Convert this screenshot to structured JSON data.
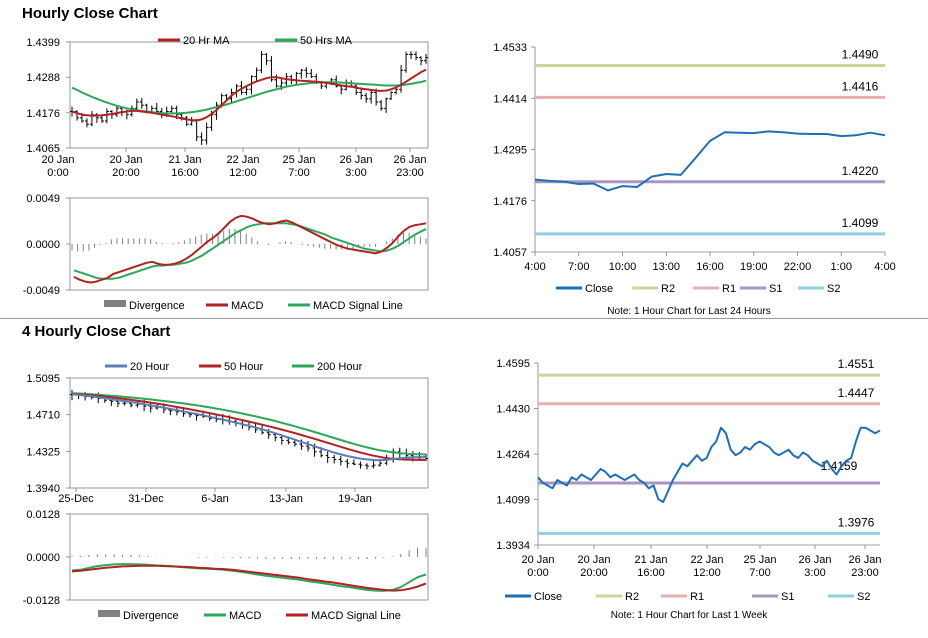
{
  "sections": {
    "hourly_title": "Hourly Close Chart",
    "four_hourly_title": "4 Hourly Close Chart"
  },
  "colors": {
    "ma_short": "#b22222",
    "ma_long": "#2ca85a",
    "ma_20h": "#5b7fb8",
    "close": "#1f6fb5",
    "r2": "#c8d89a",
    "r1": "#e6b0ae",
    "s1": "#a995c2",
    "s2": "#8fcfe0",
    "divergence": "#808080",
    "price_bars": "#000000"
  },
  "chart_data": [
    {
      "id": "hourly_price",
      "type": "ohlc",
      "legend": [
        "20 Hr MA",
        "50 Hrs MA"
      ],
      "y_ticks": [
        "1.4399",
        "1.4288",
        "1.4176",
        "1.4065"
      ],
      "ylim": [
        1.4065,
        1.4399
      ],
      "x_ticks": [
        "20 Jan\n0:00",
        "20 Jan\n20:00",
        "21 Jan\n16:00",
        "22 Jan\n12:00",
        "25 Jan\n7:00",
        "26 Jan\n3:00",
        "26 Jan\n23:00"
      ],
      "close": [
        1.418,
        1.416,
        1.415,
        1.414,
        1.417,
        1.416,
        1.415,
        1.418,
        1.417,
        1.419,
        1.418,
        1.417,
        1.419,
        1.421,
        1.42,
        1.418,
        1.419,
        1.418,
        1.417,
        1.418,
        1.419,
        1.417,
        1.416,
        1.414,
        1.415,
        1.41,
        1.409,
        1.413,
        1.417,
        1.42,
        1.423,
        1.422,
        1.424,
        1.426,
        1.424,
        1.425,
        1.429,
        1.431,
        1.436,
        1.434,
        1.428,
        1.426,
        1.427,
        1.429,
        1.428,
        1.43,
        1.431,
        1.43,
        1.429,
        1.427,
        1.426,
        1.427,
        1.428,
        1.426,
        1.425,
        1.427,
        1.426,
        1.424,
        1.423,
        1.422,
        1.424,
        1.421,
        1.419,
        1.422,
        1.424,
        1.425,
        1.431,
        1.436,
        1.436,
        1.435,
        1.434,
        1.435
      ],
      "ma20": [
        1.418,
        1.4175,
        1.417,
        1.4168,
        1.4167,
        1.4167,
        1.4168,
        1.417,
        1.4172,
        1.4175,
        1.4178,
        1.418,
        1.4182,
        1.4182,
        1.418,
        1.4178,
        1.4176,
        1.4173,
        1.417,
        1.4168,
        1.4165,
        1.4162,
        1.4158,
        1.4155,
        1.4153,
        1.4152,
        1.4155,
        1.4162,
        1.4172,
        1.4185,
        1.42,
        1.4215,
        1.423,
        1.4242,
        1.4252,
        1.426,
        1.4268,
        1.4275,
        1.428,
        1.4285,
        1.4288,
        1.4288,
        1.4285,
        1.4282,
        1.428,
        1.4278,
        1.4277,
        1.4276,
        1.4275,
        1.4274,
        1.4272,
        1.427,
        1.4268,
        1.4265,
        1.4262,
        1.426,
        1.4258,
        1.4255,
        1.4252,
        1.425,
        1.4248,
        1.4246,
        1.4245,
        1.4246,
        1.425,
        1.4256,
        1.4264,
        1.4274,
        1.4284,
        1.4294,
        1.4304,
        1.4312
      ],
      "ma50": [
        1.4255,
        1.4248,
        1.424,
        1.4233,
        1.4226,
        1.422,
        1.4214,
        1.4208,
        1.4203,
        1.4198,
        1.4194,
        1.419,
        1.4187,
        1.4184,
        1.4182,
        1.418,
        1.4178,
        1.4176,
        1.4175,
        1.4174,
        1.4174,
        1.4174,
        1.4175,
        1.4176,
        1.4178,
        1.418,
        1.4183,
        1.4186,
        1.419,
        1.4194,
        1.4198,
        1.4202,
        1.4207,
        1.4212,
        1.4217,
        1.4222,
        1.4227,
        1.4232,
        1.4237,
        1.4242,
        1.4246,
        1.425,
        1.4254,
        1.4258,
        1.4261,
        1.4264,
        1.4266,
        1.4268,
        1.427,
        1.4271,
        1.4272,
        1.4272,
        1.4272,
        1.4272,
        1.4271,
        1.427,
        1.4269,
        1.4268,
        1.4267,
        1.4266,
        1.4265,
        1.4264,
        1.4263,
        1.4262,
        1.4262,
        1.4262,
        1.4263,
        1.4265,
        1.4267,
        1.427,
        1.4273,
        1.4277
      ]
    },
    {
      "id": "hourly_macd",
      "type": "line+bar",
      "legend": [
        "Divergence",
        "MACD",
        "MACD Signal Line"
      ],
      "y_ticks": [
        "0.0049",
        "0.0000",
        "-0.0049"
      ],
      "ylim": [
        -0.0049,
        0.0049
      ],
      "macd": [
        -0.0035,
        -0.0038,
        -0.004,
        -0.0041,
        -0.004,
        -0.0038,
        -0.0036,
        -0.0032,
        -0.003,
        -0.0028,
        -0.0026,
        -0.0024,
        -0.0022,
        -0.002,
        -0.0019,
        -0.0021,
        -0.0022,
        -0.0022,
        -0.0021,
        -0.0019,
        -0.0016,
        -0.0012,
        -0.0007,
        -0.0002,
        0.0003,
        0.0007,
        0.0012,
        0.0018,
        0.0024,
        0.0028,
        0.003,
        0.0029,
        0.0027,
        0.0024,
        0.0022,
        0.0021,
        0.0022,
        0.0024,
        0.0025,
        0.0023,
        0.002,
        0.0017,
        0.0014,
        0.0011,
        0.0008,
        0.0005,
        0.0002,
        -0.0001,
        -0.0003,
        -0.0005,
        -0.0006,
        -0.0007,
        -0.0008,
        -0.0009,
        -0.001,
        -0.0008,
        -0.0004,
        0.0001,
        0.0008,
        0.0014,
        0.0018,
        0.002,
        0.0021,
        0.0022
      ],
      "signal": [
        -0.0028,
        -0.003,
        -0.0032,
        -0.0034,
        -0.0036,
        -0.0037,
        -0.0037,
        -0.0037,
        -0.0036,
        -0.0034,
        -0.0032,
        -0.003,
        -0.0028,
        -0.0026,
        -0.0024,
        -0.0023,
        -0.0023,
        -0.0022,
        -0.0022,
        -0.0021,
        -0.002,
        -0.0018,
        -0.0015,
        -0.0012,
        -0.0008,
        -0.0004,
        0.0,
        0.0004,
        0.0008,
        0.0012,
        0.0015,
        0.0018,
        0.002,
        0.0021,
        0.0022,
        0.0022,
        0.0022,
        0.0022,
        0.0022,
        0.0021,
        0.002,
        0.0018,
        0.0016,
        0.0014,
        0.0012,
        0.001,
        0.0007,
        0.0005,
        0.0003,
        0.0001,
        -0.0001,
        -0.0003,
        -0.0005,
        -0.0006,
        -0.0007,
        -0.0008,
        -0.0007,
        -0.0005,
        -0.0002,
        0.0002,
        0.0006,
        0.001,
        0.0013,
        0.0016
      ],
      "divergence": [
        -0.0007,
        -0.0008,
        -0.0008,
        -0.0007,
        -0.0004,
        -0.0001,
        0.0001,
        0.0005,
        0.0006,
        0.0006,
        0.0006,
        0.0006,
        0.0006,
        0.0006,
        0.0005,
        0.0002,
        0.0001,
        0.0,
        0.0001,
        0.0002,
        0.0004,
        0.0006,
        0.0008,
        0.001,
        0.0011,
        0.0011,
        0.0012,
        0.0014,
        0.0016,
        0.0016,
        0.0015,
        0.0011,
        0.0007,
        0.0003,
        0.0,
        -0.0001,
        0.0,
        0.0002,
        0.0003,
        0.0002,
        0.0,
        -0.0001,
        -0.0002,
        -0.0003,
        -0.0004,
        -0.0005,
        -0.0005,
        -0.0006,
        -0.0006,
        -0.0006,
        -0.0005,
        -0.0004,
        -0.0003,
        -0.0003,
        -0.0003,
        0.0,
        0.0003,
        0.0006,
        0.001,
        0.0012,
        0.0012,
        0.001,
        0.0008,
        0.0006
      ]
    },
    {
      "id": "hourly_levels",
      "type": "line",
      "note": "Note: 1 Hour Chart for Last 24 Hours",
      "legend": [
        "Close",
        "R2",
        "R1",
        "S1",
        "S2"
      ],
      "y_ticks": [
        "1.4533",
        "1.4414",
        "1.4295",
        "1.4176",
        "1.4057"
      ],
      "ylim": [
        1.4057,
        1.4533
      ],
      "x_ticks": [
        "4:00",
        "7:00",
        "10:00",
        "13:00",
        "16:00",
        "19:00",
        "22:00",
        "1:00",
        "4:00"
      ],
      "levels": {
        "R2": 1.449,
        "R1": 1.4416,
        "S1": 1.422,
        "S2": 1.4099
      },
      "level_labels": {
        "R2": "1.4490",
        "R1": "1.4416",
        "S1": "1.4220",
        "S2": "1.4099"
      },
      "close": [
        1.4225,
        1.4222,
        1.422,
        1.4215,
        1.4216,
        1.42,
        1.421,
        1.4208,
        1.4232,
        1.4238,
        1.4236,
        1.4275,
        1.4315,
        1.4335,
        1.4334,
        1.4333,
        1.4337,
        1.4335,
        1.4332,
        1.4331,
        1.4331,
        1.4326,
        1.4328,
        1.4334,
        1.4328
      ]
    },
    {
      "id": "four_hourly_price",
      "type": "ohlc",
      "legend": [
        "20 Hour",
        "50 Hour",
        "200 Hour"
      ],
      "y_ticks": [
        "1.5095",
        "1.4710",
        "1.4325",
        "1.3940"
      ],
      "ylim": [
        1.394,
        1.5095
      ],
      "x_ticks": [
        "25-Dec",
        "31-Dec",
        "6-Jan",
        "13-Jan",
        "19-Jan"
      ],
      "close": [
        1.492,
        1.491,
        1.49,
        1.489,
        1.488,
        1.486,
        1.485,
        1.483,
        1.483,
        1.481,
        1.482,
        1.48,
        1.478,
        1.479,
        1.476,
        1.475,
        1.474,
        1.472,
        1.471,
        1.47,
        1.469,
        1.467,
        1.466,
        1.465,
        1.464,
        1.462,
        1.46,
        1.458,
        1.455,
        1.452,
        1.45,
        1.447,
        1.444,
        1.442,
        1.44,
        1.438,
        1.436,
        1.432,
        1.428,
        1.426,
        1.424,
        1.422,
        1.42,
        1.419,
        1.418,
        1.417,
        1.418,
        1.42,
        1.425,
        1.432,
        1.43,
        1.428,
        1.426,
        1.427,
        1.425
      ],
      "ma20": [
        1.4925,
        1.4918,
        1.491,
        1.4902,
        1.4892,
        1.4882,
        1.4872,
        1.4862,
        1.4852,
        1.4842,
        1.4832,
        1.482,
        1.4808,
        1.4796,
        1.4784,
        1.4771,
        1.4758,
        1.4745,
        1.4731,
        1.4717,
        1.4703,
        1.4688,
        1.4673,
        1.4658,
        1.4642,
        1.4626,
        1.461,
        1.4593,
        1.4575,
        1.4556,
        1.4536,
        1.4515,
        1.4493,
        1.447,
        1.4447,
        1.4424,
        1.4401,
        1.4378,
        1.4355,
        1.4333,
        1.4312,
        1.4293,
        1.4276,
        1.4261,
        1.4249,
        1.424,
        1.4234,
        1.4232,
        1.4235,
        1.4244,
        1.4252,
        1.4258,
        1.4262,
        1.4264,
        1.4262
      ],
      "ma50": [
        1.493,
        1.4925,
        1.492,
        1.4914,
        1.4907,
        1.49,
        1.4892,
        1.4884,
        1.4875,
        1.4866,
        1.4857,
        1.4847,
        1.4837,
        1.4826,
        1.4815,
        1.4803,
        1.4791,
        1.4779,
        1.4766,
        1.4753,
        1.474,
        1.4726,
        1.4712,
        1.4698,
        1.4683,
        1.4668,
        1.4653,
        1.4637,
        1.4621,
        1.4605,
        1.4588,
        1.4571,
        1.4553,
        1.4535,
        1.4516,
        1.4497,
        1.4477,
        1.4457,
        1.4436,
        1.4415,
        1.4394,
        1.4373,
        1.4352,
        1.4332,
        1.4313,
        1.4295,
        1.4279,
        1.4265,
        1.4254,
        1.4246,
        1.4241,
        1.4238,
        1.4236,
        1.4235,
        1.4234
      ],
      "ma200": [
        1.4935,
        1.4932,
        1.4928,
        1.4924,
        1.4919,
        1.4914,
        1.4909,
        1.4903,
        1.4897,
        1.4891,
        1.4884,
        1.4877,
        1.487,
        1.4862,
        1.4854,
        1.4846,
        1.4837,
        1.4828,
        1.4818,
        1.4808,
        1.4797,
        1.4786,
        1.4774,
        1.4762,
        1.4749,
        1.4736,
        1.4722,
        1.4707,
        1.4692,
        1.4676,
        1.466,
        1.4643,
        1.4625,
        1.4607,
        1.4588,
        1.4568,
        1.4548,
        1.4528,
        1.4507,
        1.4486,
        1.4465,
        1.4444,
        1.4423,
        1.4403,
        1.4384,
        1.4366,
        1.435,
        1.4336,
        1.4324,
        1.4314,
        1.4306,
        1.43,
        1.4296,
        1.4294,
        1.4292
      ]
    },
    {
      "id": "four_hourly_macd",
      "type": "line+bar",
      "legend": [
        "Divergence",
        "MACD",
        "MACD Signal Line"
      ],
      "y_ticks": [
        "0.0128",
        "0.0000",
        "-0.0128"
      ],
      "ylim": [
        -0.0128,
        0.0128
      ],
      "macd": [
        -0.004,
        -0.0038,
        -0.0032,
        -0.0027,
        -0.0024,
        -0.0022,
        -0.0021,
        -0.0021,
        -0.0022,
        -0.0023,
        -0.0025,
        -0.0026,
        -0.0028,
        -0.003,
        -0.0032,
        -0.0034,
        -0.0035,
        -0.0036,
        -0.0038,
        -0.0041,
        -0.0044,
        -0.0048,
        -0.0052,
        -0.0056,
        -0.0059,
        -0.0062,
        -0.0065,
        -0.0068,
        -0.0072,
        -0.0075,
        -0.0079,
        -0.0083,
        -0.0087,
        -0.009,
        -0.0094,
        -0.0098,
        -0.01,
        -0.0101,
        -0.0098,
        -0.009,
        -0.0075,
        -0.006,
        -0.0052
      ],
      "signal": [
        -0.0043,
        -0.0041,
        -0.0038,
        -0.0035,
        -0.0032,
        -0.003,
        -0.0028,
        -0.0027,
        -0.0026,
        -0.0026,
        -0.0026,
        -0.0027,
        -0.0028,
        -0.0029,
        -0.003,
        -0.0032,
        -0.0033,
        -0.0035,
        -0.0036,
        -0.0038,
        -0.0041,
        -0.0044,
        -0.0047,
        -0.005,
        -0.0053,
        -0.0056,
        -0.0059,
        -0.0062,
        -0.0066,
        -0.0069,
        -0.0073,
        -0.0076,
        -0.008,
        -0.0084,
        -0.0088,
        -0.0092,
        -0.0095,
        -0.0098,
        -0.01,
        -0.0099,
        -0.0095,
        -0.0088,
        -0.0079
      ],
      "divergence": [
        0.0003,
        0.0003,
        0.0006,
        0.0008,
        0.0008,
        0.0008,
        0.0007,
        0.0006,
        0.0004,
        0.0003,
        0.0001,
        0.0001,
        0.0,
        0.0,
        -0.0001,
        -0.0002,
        -0.0002,
        -0.0001,
        -0.0002,
        -0.0003,
        -0.0003,
        -0.0004,
        -0.0005,
        -0.0006,
        -0.0006,
        -0.0006,
        -0.0006,
        -0.0006,
        -0.0006,
        -0.0006,
        -0.0006,
        -0.0007,
        -0.0007,
        -0.0006,
        -0.0006,
        -0.0006,
        -0.0005,
        -0.0003,
        0.0002,
        0.0009,
        0.002,
        0.0028,
        0.0027
      ]
    },
    {
      "id": "four_hourly_levels",
      "type": "line",
      "note": "Note: 1 Hour Chart for Last 1 Week",
      "legend": [
        "Close",
        "R2",
        "R1",
        "S1",
        "S2"
      ],
      "y_ticks": [
        "1.4595",
        "1.4430",
        "1.4264",
        "1.4099",
        "1.3934"
      ],
      "ylim": [
        1.3934,
        1.4595
      ],
      "x_ticks": [
        "20 Jan\n0:00",
        "20 Jan\n20:00",
        "21 Jan\n16:00",
        "22 Jan\n12:00",
        "25 Jan\n7:00",
        "26 Jan\n3:00",
        "26 Jan\n23:00"
      ],
      "levels": {
        "R2": 1.4551,
        "R1": 1.4447,
        "S1": 1.4159,
        "S2": 1.3976
      },
      "level_labels": {
        "R2": "1.4551",
        "R1": "1.4447",
        "S1": "1.4159",
        "S2": "1.3976"
      },
      "close": [
        1.418,
        1.416,
        1.415,
        1.414,
        1.417,
        1.416,
        1.415,
        1.418,
        1.417,
        1.419,
        1.418,
        1.417,
        1.419,
        1.421,
        1.42,
        1.418,
        1.419,
        1.418,
        1.417,
        1.418,
        1.419,
        1.417,
        1.416,
        1.414,
        1.415,
        1.41,
        1.409,
        1.413,
        1.417,
        1.42,
        1.423,
        1.422,
        1.424,
        1.426,
        1.424,
        1.425,
        1.429,
        1.431,
        1.436,
        1.434,
        1.428,
        1.426,
        1.427,
        1.429,
        1.428,
        1.43,
        1.431,
        1.43,
        1.429,
        1.427,
        1.426,
        1.427,
        1.428,
        1.426,
        1.425,
        1.427,
        1.426,
        1.424,
        1.423,
        1.422,
        1.424,
        1.421,
        1.419,
        1.422,
        1.424,
        1.425,
        1.431,
        1.436,
        1.436,
        1.435,
        1.434,
        1.435
      ]
    }
  ]
}
